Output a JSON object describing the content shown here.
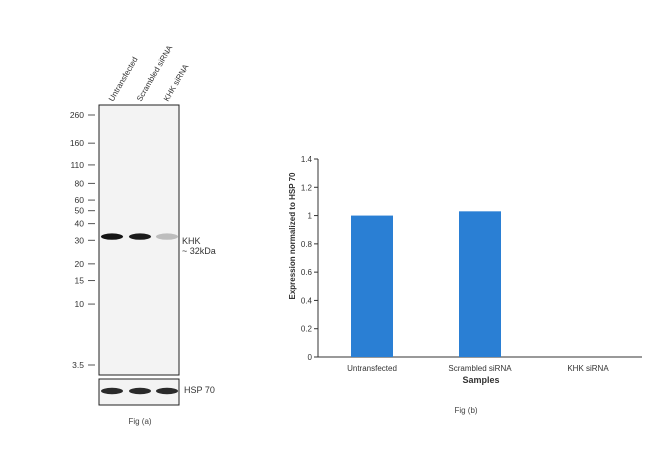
{
  "blot": {
    "lane_labels": [
      "Untransfected",
      "Scrambled siRNA",
      "KHK siRNA"
    ],
    "markers": [
      "260",
      "160",
      "110",
      "80",
      "60",
      "50",
      "40",
      "30",
      "20",
      "15",
      "10",
      "3.5"
    ],
    "marker_values": [
      260,
      160,
      110,
      80,
      60,
      50,
      40,
      30,
      20,
      15,
      10,
      3.5
    ],
    "band_label": "KHK",
    "band_size": "~ 32kDa",
    "band_relative_intensity": [
      1.0,
      0.97,
      0.25
    ],
    "loading_label": "HSP 70",
    "caption": "Fig (a)"
  },
  "chart_data": {
    "type": "bar",
    "categories": [
      "Untransfected",
      "Scrambled siRNA",
      "KHK siRNA"
    ],
    "values": [
      1.0,
      1.03,
      0.0
    ],
    "xlabel": "Samples",
    "ylabel": "Expression  normalized to HSP 70",
    "ylim": [
      0,
      1.4
    ],
    "yticks": [
      "0",
      "0.2",
      "0.4",
      "0.6",
      "0.8",
      "1",
      "1.2",
      "1.4"
    ],
    "ytick_values": [
      0,
      0.2,
      0.4,
      0.6,
      0.8,
      1.0,
      1.2,
      1.4
    ],
    "bar_color": "#2a7fd4",
    "grid": false,
    "caption": "Fig (b)"
  }
}
